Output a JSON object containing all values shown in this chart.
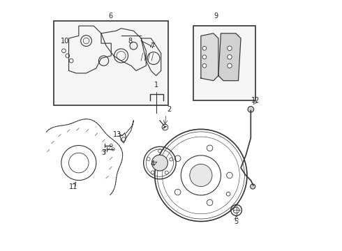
{
  "bg_color": "#ffffff",
  "line_color": "#333333",
  "label_color": "#222222",
  "fig_width": 4.9,
  "fig_height": 3.6,
  "dpi": 100
}
